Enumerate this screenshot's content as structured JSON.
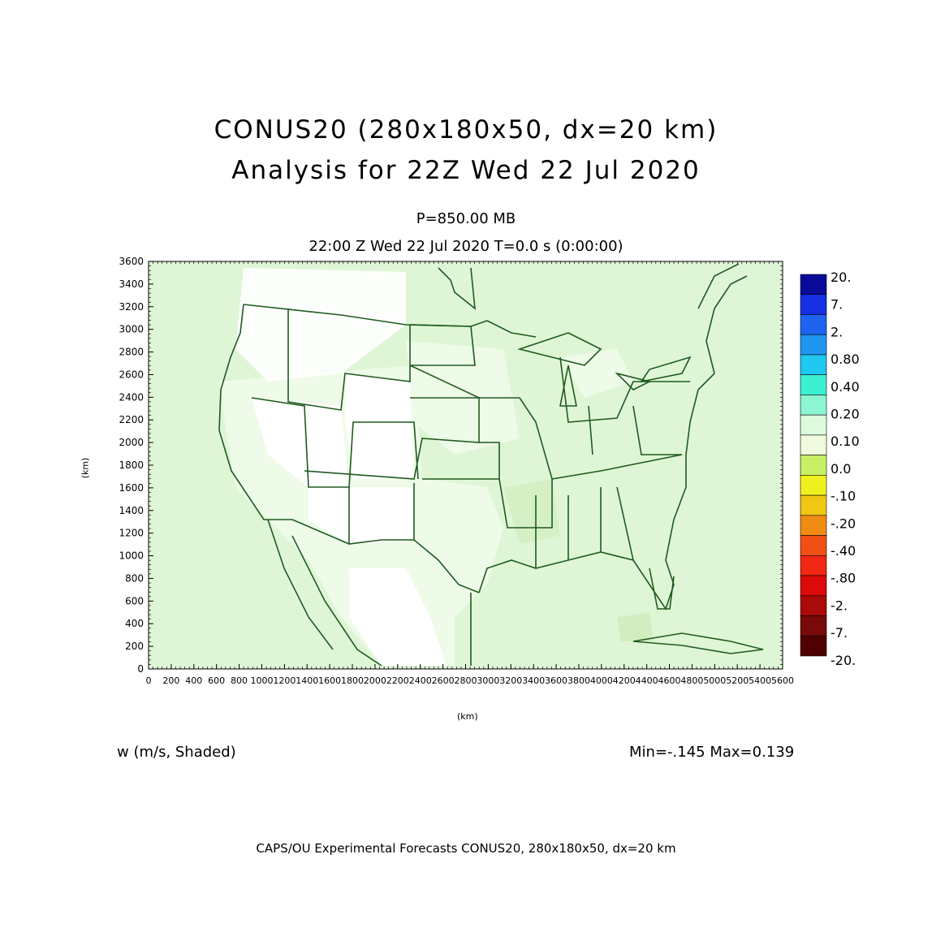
{
  "title": {
    "line1": "CONUS20 (280x180x50, dx=20 km)",
    "line2": "Analysis for 22Z Wed 22 Jul 2020"
  },
  "level": "P=850.00 MB",
  "valid_time": "22:00 Z Wed 22 Jul 2020   T=0.0 s (0:00:00)",
  "variable": "w (m/s, Shaded)",
  "minmax": "Min=-.145 Max=0.139",
  "footer": "CAPS/OU Experimental Forecasts  CONUS20, 280x180x50, dx=20 km",
  "axes": {
    "x_unit": "(km)",
    "y_unit": "(km)",
    "x_ticks": [
      "0",
      "200",
      "400",
      "600",
      "800",
      "1000",
      "1200",
      "1400",
      "1600",
      "1800",
      "2000",
      "2200",
      "2400",
      "2600",
      "2800",
      "3000",
      "3200",
      "3400",
      "3600",
      "3800",
      "4000",
      "4200",
      "4400",
      "4600",
      "4800",
      "5000",
      "5200",
      "5400",
      "5600"
    ],
    "y_ticks": [
      "0",
      "200",
      "400",
      "600",
      "800",
      "1000",
      "1200",
      "1400",
      "1600",
      "1800",
      "2000",
      "2200",
      "2400",
      "2600",
      "2800",
      "3000",
      "3200",
      "3400",
      "3600"
    ],
    "xlim": [
      0,
      5600
    ],
    "ylim": [
      0,
      3600
    ]
  },
  "colorbar": {
    "labels": [
      "20.",
      "7.",
      "2.",
      "0.80",
      "0.40",
      "0.20",
      "0.10",
      "0.0",
      "-.10",
      "-.20",
      "-.40",
      "-.80",
      "-2.",
      "-7.",
      "-20."
    ],
    "colors": [
      "#0a0a9a",
      "#1430e0",
      "#1e64f0",
      "#1e96f0",
      "#1ec8f0",
      "#3cf0d2",
      "#8cf5d2",
      "#dcfadc",
      "#f0fadc",
      "#c8f064",
      "#f0f01e",
      "#f0c814",
      "#f08c14",
      "#f05014",
      "#f02814",
      "#dc0a0a",
      "#aa0a0a",
      "#780a0a",
      "#500000"
    ]
  },
  "map_colors": {
    "background": "#dff6d6",
    "near_zero": "#eefbe8",
    "white": "#ffffff",
    "border": "#1f5a1f"
  }
}
